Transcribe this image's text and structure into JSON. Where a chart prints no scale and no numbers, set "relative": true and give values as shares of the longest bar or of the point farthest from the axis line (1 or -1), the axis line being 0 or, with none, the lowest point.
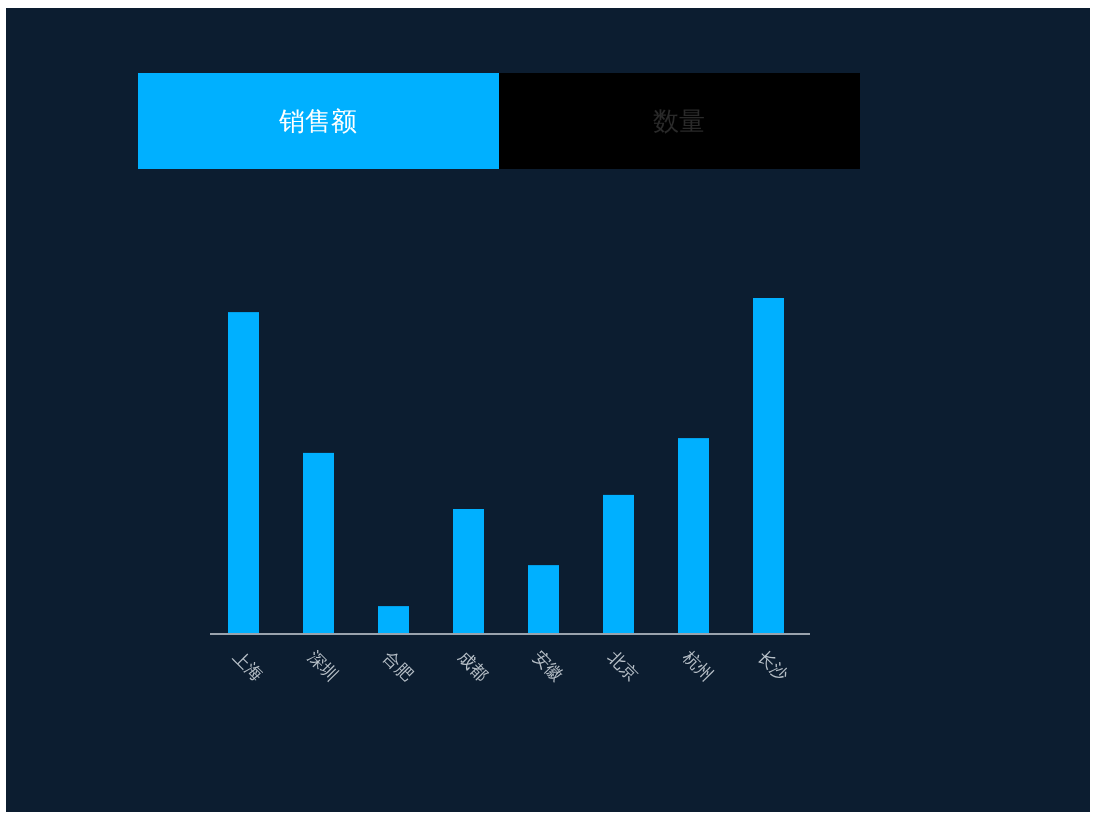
{
  "chart_data": {
    "type": "bar",
    "relative": true,
    "annotations": [
      "销售额",
      "数量"
    ],
    "categories": [
      "上海",
      "深圳",
      "合肥",
      "成都",
      "安徽",
      "北京",
      "杭州",
      "长沙"
    ],
    "values": [
      0.958,
      0.539,
      0.083,
      0.372,
      0.205,
      0.414,
      0.583,
      1
    ],
    "color": "#00b0ff"
  }
}
